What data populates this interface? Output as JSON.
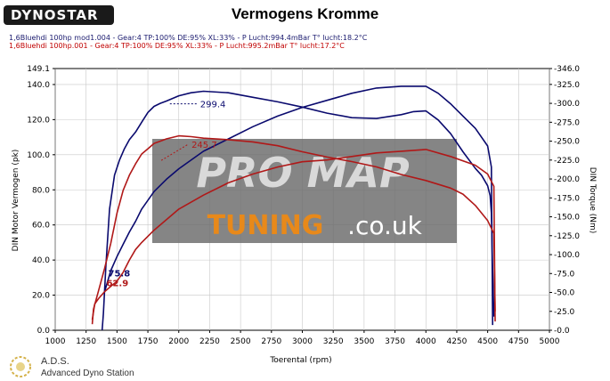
{
  "logo": {
    "text": "DYNOSTAR"
  },
  "title": "Vermogens Kromme",
  "run_headers": [
    "1,6Bluehdi 100hp mod1.004 - Gear:4 TP:100% DE:95% XL:33%    - P Lucht:994.4mBar T° lucht:18.2°C",
    "1,6Bluehdi 100hp.001 - Gear:4 TP:100% DE:95% XL:33%    - P Lucht:995.2mBar T° lucht:17.2°C"
  ],
  "footer": {
    "title": "A.D.S.",
    "subtitle": "Advanced Dyno Station"
  },
  "watermark": {
    "line1": "PRO MAP",
    "line2a": "TUNING",
    "line2b": ".co.uk"
  },
  "colors": {
    "modified": "#0a0a6e",
    "stock": "#b01818",
    "grid": "#c8c8c8",
    "watermark_box": "#6a6a6a",
    "watermark_accent": "#e8891a"
  },
  "chart_data": {
    "type": "line",
    "xlabel": "Toerental (rpm)",
    "ylabel": "DIN Motor Vermogen (pk)",
    "y2label": "DIN Torque (Nm)",
    "xlim": [
      1000,
      5000
    ],
    "ylim": [
      0,
      149.1
    ],
    "y2lim": [
      0,
      346
    ],
    "x_ticks": [
      "1000",
      "1250",
      "1500",
      "1750",
      "2000",
      "2250",
      "2500",
      "2750",
      "3000",
      "3250",
      "3500",
      "3750",
      "4000",
      "4250",
      "4500",
      "4750",
      "5000"
    ],
    "y_ticks": [
      "0.0",
      "20.0",
      "40.0",
      "60.0",
      "80.0",
      "100.0",
      "120.0",
      "140.0",
      "149.1"
    ],
    "y_tick_values": [
      0,
      20,
      40,
      60,
      80,
      100,
      120,
      140,
      149.1
    ],
    "y2_ticks": [
      "-0.0",
      "-25.0",
      "-50.0",
      "-75.0",
      "-100.0",
      "-125.0",
      "-150.0",
      "-175.0",
      "-200.0",
      "-225.0",
      "-250.0",
      "-275.0",
      "-300.0",
      "-325.0",
      "-346.0"
    ],
    "y2_tick_values": [
      0,
      25,
      50,
      75,
      100,
      125,
      150,
      175,
      200,
      225,
      250,
      275,
      300,
      325,
      346
    ],
    "grid": true,
    "annotations": [
      {
        "text": "299.4",
        "series": "mod_torque",
        "x": 2130,
        "y": 299.4,
        "color": "#0a0a6e",
        "anchor": "start",
        "dx": 6,
        "dy": 4
      },
      {
        "text": "245.7",
        "series": "stock_torque",
        "x": 2060,
        "y": 245.7,
        "color": "#b01818",
        "anchor": "start",
        "dx": 6,
        "dy": 4
      },
      {
        "text": "75.8",
        "series": "mod_power",
        "x": 1400,
        "y": 75.8,
        "axis": "y2",
        "color": "#0a0a6e",
        "anchor": "start",
        "dx": 4,
        "dy": 4
      },
      {
        "text": "62.9",
        "series": "stock_power",
        "x": 1400,
        "y": 62.9,
        "axis": "y2",
        "color": "#b01818",
        "anchor": "start",
        "dx": 2,
        "dy": 4
      }
    ],
    "series": [
      {
        "id": "mod_torque",
        "axis": "y2",
        "color": "#0a0a6e",
        "x": [
          1380,
          1390,
          1410,
          1440,
          1480,
          1520,
          1560,
          1600,
          1650,
          1700,
          1750,
          1800,
          1850,
          1900,
          2000,
          2100,
          2200,
          2400,
          2600,
          2800,
          3000,
          3200,
          3400,
          3600,
          3800,
          3900,
          4000,
          4100,
          4200,
          4300,
          4400,
          4450,
          4500,
          4520,
          4530,
          4540,
          4550
        ],
        "y": [
          0,
          22,
          85,
          160,
          205,
          225,
          240,
          252,
          262,
          275,
          288,
          296,
          300,
          303,
          310,
          314,
          316,
          314,
          308,
          302,
          295,
          287,
          281,
          280,
          285,
          289,
          290,
          278,
          260,
          236,
          214,
          205,
          191,
          178,
          155,
          80,
          18
        ]
      },
      {
        "id": "mod_power",
        "axis": "y",
        "color": "#0a0a6e",
        "x": [
          1400,
          1450,
          1500,
          1550,
          1600,
          1650,
          1700,
          1800,
          1900,
          2000,
          2200,
          2400,
          2600,
          2800,
          3000,
          3200,
          3400,
          3600,
          3800,
          4000,
          4100,
          4200,
          4300,
          4400,
          4500,
          4530,
          4540
        ],
        "y": [
          22,
          34,
          42,
          49,
          56,
          62,
          69,
          79,
          86,
          92,
          102,
          109,
          116,
          122,
          127,
          131,
          135,
          138,
          139,
          139,
          135,
          129,
          122,
          115,
          105,
          93,
          3
        ]
      },
      {
        "id": "stock_torque",
        "axis": "y2",
        "color": "#b01818",
        "x": [
          1300,
          1310,
          1350,
          1400,
          1450,
          1500,
          1550,
          1600,
          1650,
          1700,
          1750,
          1800,
          1850,
          1900,
          2000,
          2100,
          2200,
          2400,
          2600,
          2800,
          3000,
          3200,
          3400,
          3600,
          3800,
          4000,
          4200,
          4300,
          4400,
          4500,
          4550,
          4560
        ],
        "y": [
          8,
          28,
          52,
          82,
          115,
          155,
          185,
          205,
          220,
          233,
          240,
          247,
          250,
          253,
          257,
          256,
          254,
          252,
          249,
          244,
          236,
          229,
          223,
          216,
          206,
          198,
          188,
          180,
          165,
          145,
          128,
          25
        ],
        "dash_segment": [
          2060,
          2100
        ]
      },
      {
        "id": "stock_power",
        "axis": "y",
        "color": "#b01818",
        "x": [
          1300,
          1320,
          1350,
          1400,
          1450,
          1500,
          1550,
          1600,
          1650,
          1700,
          1800,
          2000,
          2200,
          2400,
          2600,
          2800,
          3000,
          3200,
          3400,
          3600,
          3800,
          4000,
          4200,
          4400,
          4500,
          4550,
          4560
        ],
        "y": [
          6,
          15,
          18,
          22,
          25,
          28,
          33,
          40,
          46,
          50,
          57,
          69,
          77,
          84,
          89,
          93,
          96,
          97,
          99,
          101,
          102,
          103,
          99,
          94,
          89,
          82,
          5
        ]
      }
    ]
  }
}
